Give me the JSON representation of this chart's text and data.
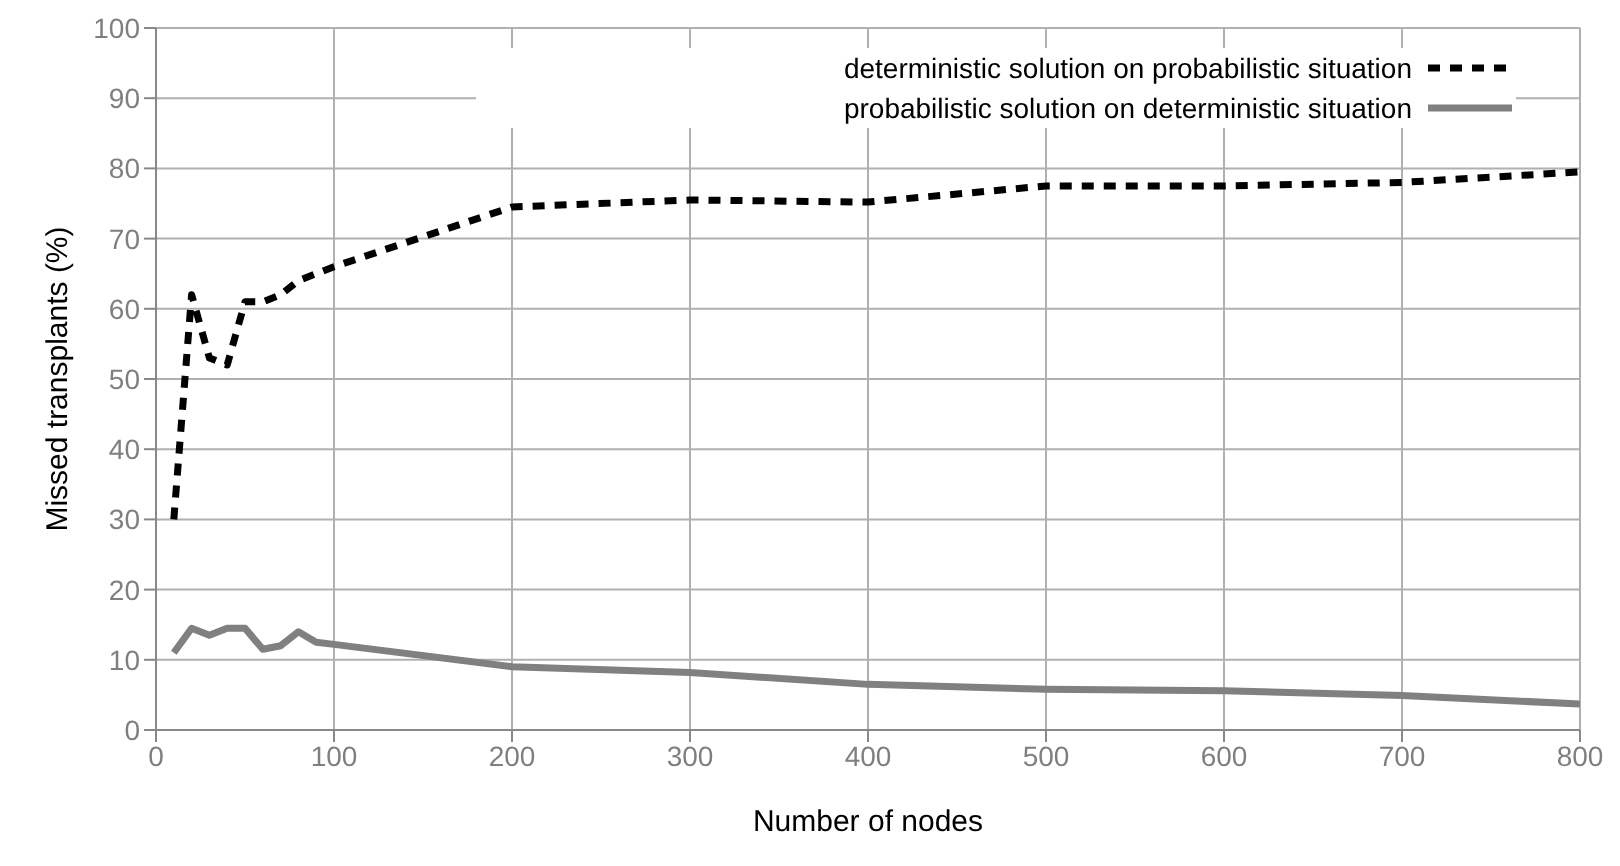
{
  "chart_data": {
    "type": "line",
    "xlabel": "Number of nodes",
    "ylabel": "Missed transplants (%)",
    "x": [
      10,
      20,
      30,
      40,
      50,
      60,
      70,
      80,
      90,
      100,
      200,
      300,
      400,
      500,
      600,
      700,
      800
    ],
    "series": [
      {
        "name": "deterministic solution on probabilistic situation",
        "color": "#000000",
        "line_style": "dashed",
        "values": [
          30,
          62,
          53,
          52,
          61,
          61,
          62,
          64,
          65,
          66,
          74.5,
          75.5,
          75.2,
          77.5,
          77.5,
          78,
          79.5
        ]
      },
      {
        "name": "probabilistic solution on deterministic situation",
        "color": "#808080",
        "line_style": "solid",
        "values": [
          11,
          14.5,
          13.5,
          14.5,
          14.5,
          11.5,
          12,
          14,
          12.5,
          12.2,
          9,
          8.2,
          6.5,
          5.8,
          5.6,
          4.9,
          3.7
        ]
      }
    ],
    "xlim": [
      0,
      800
    ],
    "xticks": [
      0,
      100,
      200,
      300,
      400,
      500,
      600,
      700,
      800
    ],
    "ylim": [
      0,
      100
    ],
    "yticks": [
      0,
      10,
      20,
      30,
      40,
      50,
      60,
      70,
      80,
      90,
      100
    ],
    "grid": true,
    "legend": "top right",
    "marker": "none"
  }
}
